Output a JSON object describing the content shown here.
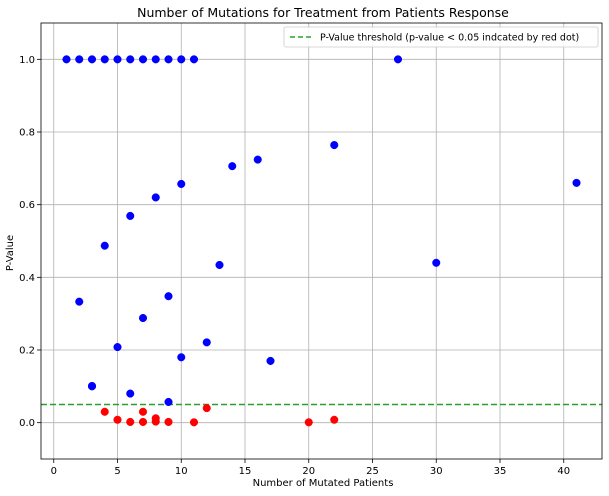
{
  "chart_data": {
    "type": "scatter",
    "title": "Number of Mutations for Treatment from Patients Response",
    "xlabel": "Number of Mutated Patients",
    "ylabel": "P-Value",
    "xlim": [
      -1.0,
      43.0
    ],
    "ylim": [
      -0.1,
      1.1
    ],
    "xticks": [
      0,
      5,
      10,
      15,
      20,
      25,
      30,
      35,
      40
    ],
    "yticks": [
      0.0,
      0.2,
      0.4,
      0.6,
      0.8,
      1.0
    ],
    "grid": true,
    "legend_position": "top-right",
    "threshold": {
      "value": 0.05,
      "label": "P-Value threshold (p-value < 0.05 indcated by red dot)",
      "color": "#2ca02c",
      "style": "dashed"
    },
    "series": [
      {
        "color": "#0000ff",
        "x": [
          1,
          2,
          3,
          4,
          5,
          6,
          7,
          8,
          9,
          10,
          11,
          27,
          2,
          3,
          4,
          6,
          8,
          10,
          14,
          16,
          22,
          41,
          13,
          30,
          9,
          7,
          5,
          10,
          12,
          17,
          3,
          6,
          9
        ],
        "y": [
          1.0,
          1.0,
          1.0,
          1.0,
          1.0,
          1.0,
          1.0,
          1.0,
          1.0,
          1.0,
          1.0,
          1.0,
          0.333,
          0.1,
          0.487,
          0.569,
          0.62,
          0.657,
          0.706,
          0.724,
          0.764,
          0.66,
          0.434,
          0.44,
          0.348,
          0.288,
          0.208,
          0.18,
          0.221,
          0.17,
          0.101,
          0.08,
          0.057
        ]
      },
      {
        "color": "#ff0000",
        "x": [
          4,
          5,
          6,
          7,
          7,
          8,
          8,
          9,
          11,
          12,
          20,
          22
        ],
        "y": [
          0.03,
          0.008,
          0.002,
          0.03,
          0.002,
          0.012,
          0.003,
          0.002,
          0.001,
          0.04,
          0.001,
          0.008
        ]
      }
    ]
  }
}
